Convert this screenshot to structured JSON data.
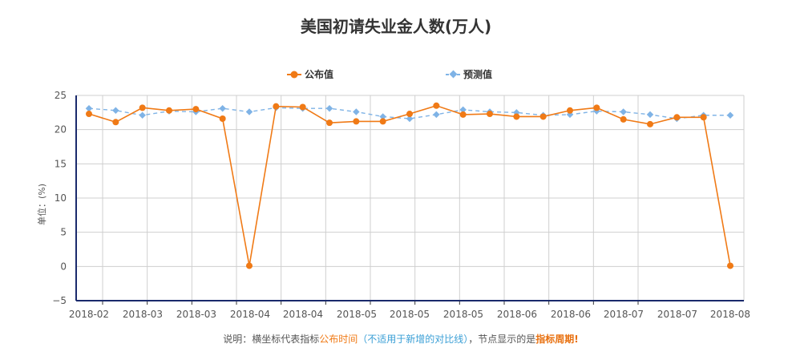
{
  "chart_data": {
    "type": "line",
    "title": "美国初请失业金人数(万人)",
    "ylabel": "单位：(%)",
    "ylim": [
      -5,
      25
    ],
    "yticks": [
      -5,
      0,
      5,
      10,
      15,
      20,
      25
    ],
    "grid": true,
    "legend_position": "top",
    "x_tick_labels": [
      "2018-02",
      "2018-03",
      "2018-03",
      "2018-04",
      "2018-04",
      "2018-05",
      "2018-05",
      "2018-05",
      "2018-06",
      "2018-06",
      "2018-07",
      "2018-07",
      "2018-08"
    ],
    "series": [
      {
        "name": "公布值",
        "color": "#f07a16",
        "marker": "circle",
        "dash": "solid",
        "values": [
          22.3,
          21.1,
          23.2,
          22.8,
          23.0,
          21.6,
          0.1,
          23.4,
          23.3,
          21.0,
          21.2,
          21.2,
          22.3,
          23.5,
          22.2,
          22.3,
          21.9,
          21.9,
          22.8,
          23.2,
          21.5,
          20.8,
          21.8,
          21.8,
          0.1
        ]
      },
      {
        "name": "预测值",
        "color": "#7fb3e6",
        "marker": "diamond",
        "dash": "dashed",
        "values": [
          23.1,
          22.8,
          22.1,
          22.7,
          22.6,
          23.1,
          22.6,
          23.2,
          23.1,
          23.1,
          22.6,
          21.9,
          21.6,
          22.2,
          22.9,
          22.6,
          22.5,
          22.1,
          22.2,
          22.7,
          22.6,
          22.2,
          21.6,
          22.1,
          22.1
        ]
      }
    ]
  },
  "note": {
    "prefix": "说明：横坐标代表指标",
    "part1": "公布时间",
    "part2": "（不适用于新增的对比线）",
    "middle": "，节点显示的是",
    "part3": "指标周期!"
  }
}
